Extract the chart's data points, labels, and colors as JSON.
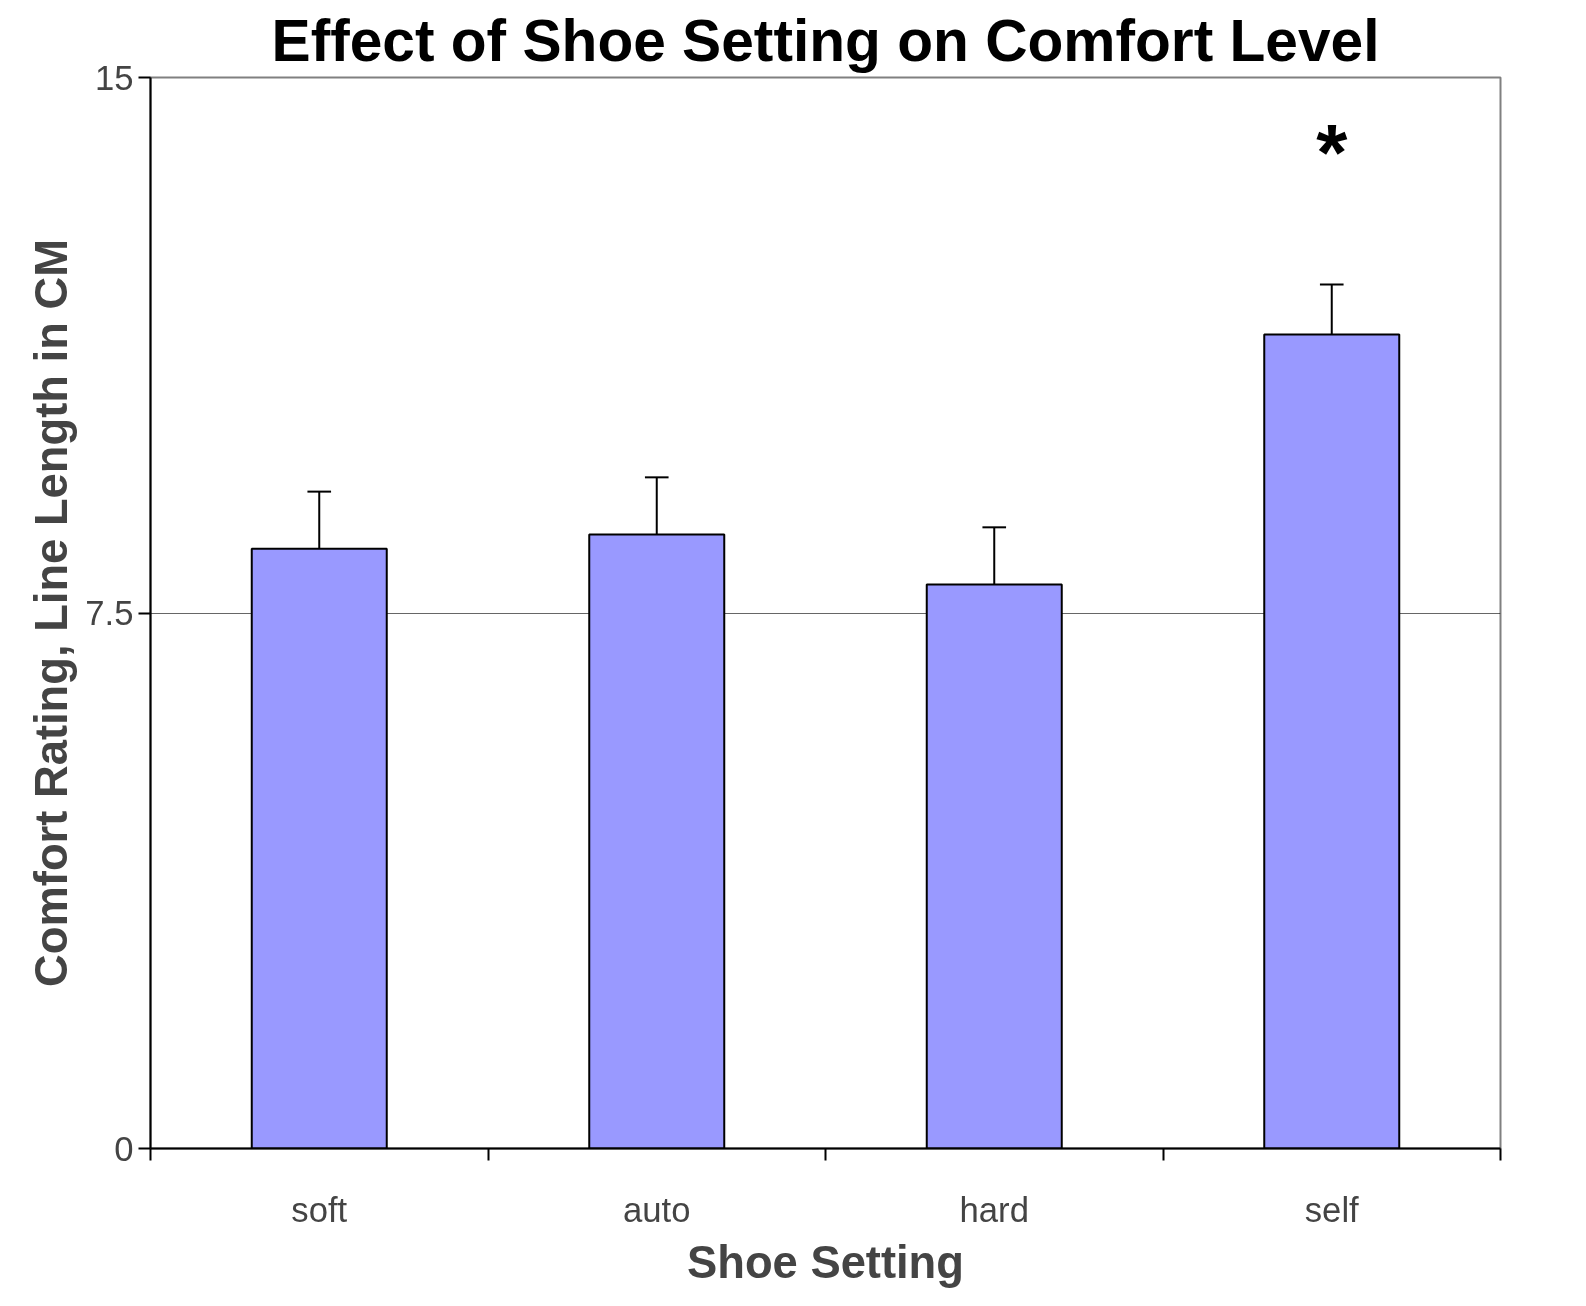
{
  "chart_data": {
    "type": "bar",
    "title": "Effect of Shoe Setting on Comfort Level",
    "xlabel": "Shoe Setting",
    "ylabel": "Comfort Rating, Line Length in CM",
    "categories": [
      "soft",
      "auto",
      "hard",
      "self"
    ],
    "values": [
      8.4,
      8.6,
      7.9,
      11.4
    ],
    "errors": [
      [
        8.4,
        9.2
      ],
      [
        8.6,
        9.4
      ],
      [
        7.9,
        8.7
      ],
      [
        11.4,
        12.1
      ]
    ],
    "color": "#9999ff",
    "ylim": [
      0,
      15
    ],
    "yticks": [
      0,
      7.5,
      15
    ],
    "grid": "y",
    "annotations": [
      "*"
    ]
  }
}
